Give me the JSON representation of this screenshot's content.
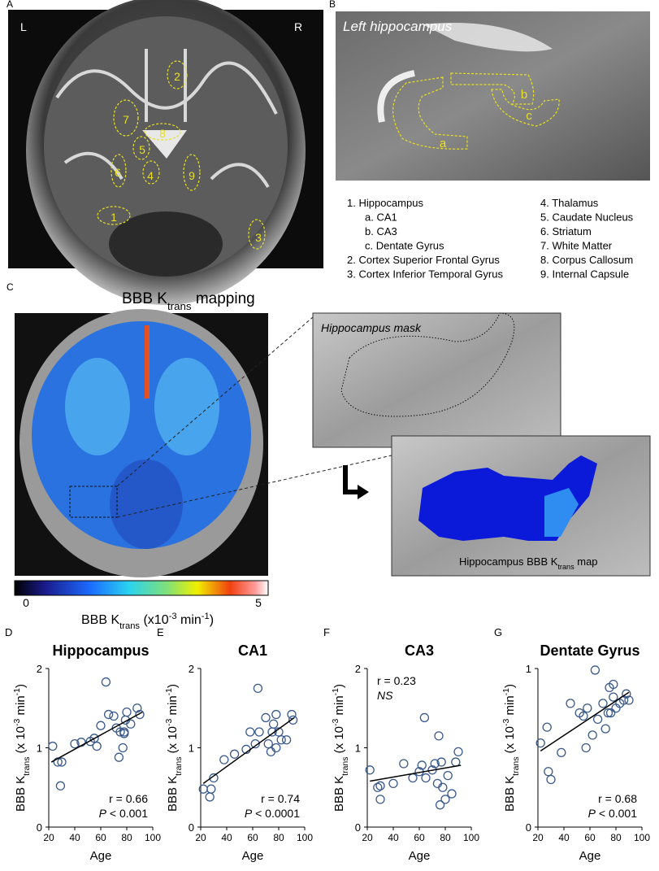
{
  "panel_letters": [
    "A",
    "B",
    "C"
  ],
  "panel_a": {
    "side_labels": [
      "L",
      "R"
    ],
    "rois": [
      "1",
      "2",
      "3",
      "4",
      "5",
      "6",
      "7",
      "8",
      "9"
    ]
  },
  "panel_b": {
    "title": "Left hippocampus",
    "rois": [
      "a",
      "b",
      "c"
    ],
    "legend_left": [
      {
        "label": "1. Hippocampus",
        "subitems": [
          "a. CA1",
          "b. CA3",
          "c. Dentate Gyrus"
        ]
      },
      {
        "label": "2. Cortex Superior Frontal Gyrus",
        "subitems": []
      },
      {
        "label": "3. Cortex Inferior Temporal Gyrus",
        "subitems": []
      }
    ],
    "legend_right": [
      "4. Thalamus",
      "5. Caudate Nucleus",
      "6. Striatum",
      "7. White Matter",
      "8. Corpus Callosum",
      "9. Internal Capsule"
    ]
  },
  "panel_c": {
    "title": [
      {
        "text": "BBB K"
      },
      {
        "sub": "trans"
      },
      {
        "text": " mapping"
      }
    ],
    "mask_label": "Hippocampus mask",
    "map_label": [
      {
        "text": "Hippocampus BBB K"
      },
      {
        "sub": "trans"
      },
      {
        "text": " map"
      }
    ],
    "colorbar_ticks": [
      "0",
      "5"
    ],
    "colorbar_label": [
      {
        "text": "BBB K"
      },
      {
        "sub": "trans"
      },
      {
        "text": " (x10"
      },
      {
        "sup": "-3"
      },
      {
        "text": " min"
      },
      {
        "sup": "-1"
      },
      {
        "text": ")"
      }
    ]
  },
  "chart_data": [
    {
      "type": "scatter",
      "panel_label": "D",
      "title": "Hippocampus",
      "xlabel": "Age",
      "ylabel": [
        {
          "text": "BBB K"
        },
        {
          "sub": "trans"
        },
        {
          "text": " (x 10"
        },
        {
          "sup": "-3"
        },
        {
          "text": " min"
        },
        {
          "sup": "-1"
        },
        {
          "text": ")"
        }
      ],
      "xlim": [
        20,
        100
      ],
      "xticks": [
        20,
        40,
        60,
        80,
        100
      ],
      "ylim": [
        0,
        2
      ],
      "yticks": [
        0,
        1,
        2
      ],
      "color": "#3a5a8c",
      "x": [
        23,
        27,
        29,
        30,
        40,
        45,
        52,
        55,
        57,
        60,
        64,
        66,
        70,
        72,
        74,
        75,
        77,
        78,
        78,
        79,
        80,
        83,
        88,
        90
      ],
      "values": [
        1.02,
        0.82,
        0.52,
        0.82,
        1.05,
        1.07,
        1.08,
        1.12,
        1.02,
        1.28,
        1.83,
        1.42,
        1.4,
        1.25,
        0.88,
        1.2,
        1.0,
        1.18,
        1.2,
        1.35,
        1.45,
        1.3,
        1.5,
        1.42
      ],
      "fit": {
        "x": [
          22,
          92
        ],
        "values": [
          0.82,
          1.45
        ]
      },
      "annotation_position": "lower right",
      "annotations": [
        [
          {
            "text": "r = 0.66"
          }
        ],
        [
          {
            "italic": "P"
          },
          {
            "text": " < 0.001"
          }
        ]
      ]
    },
    {
      "type": "scatter",
      "panel_label": "E",
      "title": "CA1",
      "xlabel": "Age",
      "ylabel": [
        {
          "text": "BBB K"
        },
        {
          "sub": "trans"
        },
        {
          "text": " (x 10"
        },
        {
          "sup": "-3"
        },
        {
          "text": " min"
        },
        {
          "sup": "-1"
        },
        {
          "text": ")"
        }
      ],
      "xlim": [
        20,
        100
      ],
      "xticks": [
        20,
        40,
        60,
        80,
        100
      ],
      "ylim": [
        0,
        2
      ],
      "yticks": [
        0,
        1,
        2
      ],
      "color": "#3a5a8c",
      "x": [
        22,
        27,
        28,
        30,
        38,
        46,
        55,
        58,
        62,
        64,
        65,
        70,
        72,
        74,
        75,
        76,
        78,
        78,
        80,
        82,
        86,
        90,
        91
      ],
      "values": [
        0.48,
        0.38,
        0.48,
        0.62,
        0.85,
        0.92,
        0.98,
        1.2,
        1.05,
        1.75,
        1.2,
        1.38,
        1.05,
        0.95,
        1.2,
        1.3,
        1.0,
        1.42,
        1.2,
        1.1,
        1.1,
        1.42,
        1.35
      ],
      "fit": {
        "x": [
          22,
          92
        ],
        "values": [
          0.55,
          1.38
        ]
      },
      "annotation_position": "lower right",
      "annotations": [
        [
          {
            "text": "r = 0.74"
          }
        ],
        [
          {
            "italic": "P"
          },
          {
            "text": " < 0.0001"
          }
        ]
      ]
    },
    {
      "type": "scatter",
      "panel_label": "F",
      "title": "CA3",
      "xlabel": "Age",
      "ylabel": [
        {
          "text": "BBB K"
        },
        {
          "sub": "trans"
        },
        {
          "text": " (x 10"
        },
        {
          "sup": "-3"
        },
        {
          "text": " min"
        },
        {
          "sup": "-1"
        },
        {
          "text": ")"
        }
      ],
      "xlim": [
        20,
        100
      ],
      "xticks": [
        20,
        40,
        60,
        80,
        100
      ],
      "ylim": [
        0,
        2
      ],
      "yticks": [
        0,
        1,
        2
      ],
      "color": "#3a5a8c",
      "x": [
        22,
        28,
        30,
        30,
        40,
        48,
        55,
        60,
        62,
        64,
        65,
        70,
        72,
        74,
        75,
        76,
        77,
        78,
        80,
        82,
        85,
        88,
        90
      ],
      "values": [
        0.72,
        0.5,
        0.52,
        0.35,
        0.55,
        0.8,
        0.62,
        0.7,
        0.78,
        1.38,
        0.62,
        0.72,
        0.8,
        0.55,
        1.15,
        0.28,
        0.82,
        0.5,
        0.35,
        0.65,
        0.42,
        0.82,
        0.95
      ],
      "fit": {
        "x": [
          22,
          92
        ],
        "values": [
          0.58,
          0.78
        ]
      },
      "annotation_position": "upper left",
      "annotations": [
        [
          {
            "text": "r = 0.23"
          }
        ],
        [
          {
            "italic": "NS"
          }
        ]
      ]
    },
    {
      "type": "scatter",
      "panel_label": "G",
      "title": "Dentate Gyrus",
      "xlabel": "Age",
      "ylabel": [
        {
          "text": "BBB K"
        },
        {
          "sub": "trans"
        },
        {
          "text": " (x 10"
        },
        {
          "sup": "-3"
        },
        {
          "text": " min"
        },
        {
          "sup": "-1"
        },
        {
          "text": ")"
        }
      ],
      "xlim": [
        20,
        100
      ],
      "xticks": [
        20,
        40,
        60,
        80,
        100
      ],
      "ylim": [
        0,
        1
      ],
      "yticks": [
        0,
        1
      ],
      "color": "#3a5a8c",
      "x": [
        22,
        27,
        28,
        30,
        38,
        45,
        52,
        55,
        57,
        58,
        62,
        64,
        66,
        70,
        72,
        74,
        75,
        76,
        78,
        78,
        80,
        83,
        86,
        88,
        90
      ],
      "values": [
        0.53,
        0.63,
        0.35,
        0.3,
        0.47,
        0.78,
        0.72,
        0.7,
        0.5,
        0.75,
        0.58,
        0.99,
        0.68,
        0.78,
        0.62,
        0.72,
        0.88,
        0.72,
        0.82,
        0.9,
        0.75,
        0.78,
        0.8,
        0.84,
        0.8
      ],
      "fit": {
        "x": [
          22,
          90
        ],
        "values": [
          0.48,
          0.85
        ]
      },
      "annotation_position": "lower right",
      "annotations": [
        [
          {
            "text": "r = 0.68"
          }
        ],
        [
          {
            "italic": "P"
          },
          {
            "text": " < 0.001"
          }
        ]
      ]
    }
  ]
}
